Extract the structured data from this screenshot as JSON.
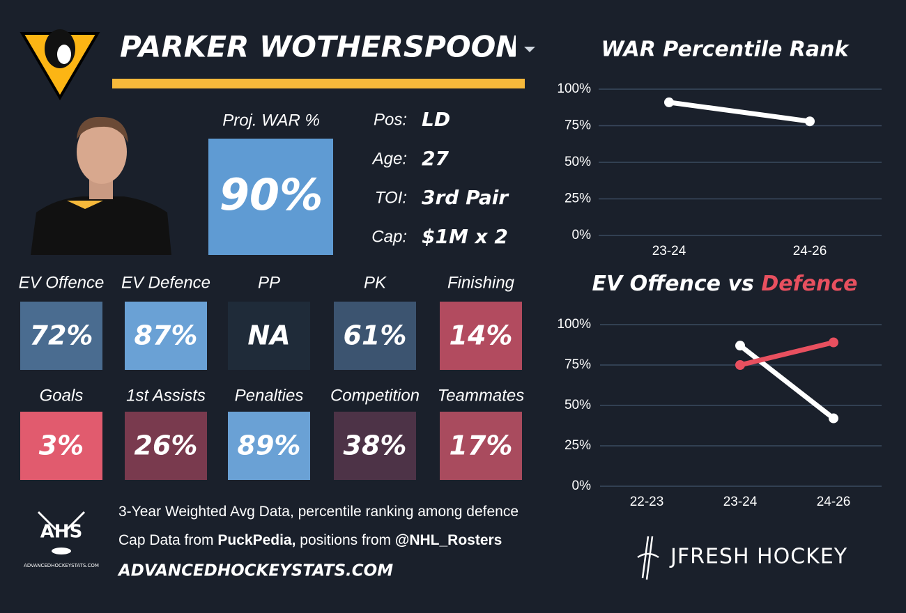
{
  "header": {
    "player_name": "PARKER WOTHERSPOON"
  },
  "projection": {
    "label": "Proj. WAR %",
    "value": "90%",
    "color": "#5f9bd3"
  },
  "info": [
    {
      "label": "Pos:",
      "value": "LD"
    },
    {
      "label": "Age:",
      "value": "27"
    },
    {
      "label": "TOI:",
      "value": "3rd Pair"
    },
    {
      "label": "Cap:",
      "value": "$1M x 2"
    }
  ],
  "tiles": [
    {
      "label": "EV Offence",
      "value": "72%",
      "color": "#4a6c90"
    },
    {
      "label": "EV Defence",
      "value": "87%",
      "color": "#6aa1d5"
    },
    {
      "label": "PP",
      "value": "NA",
      "color": "#1f2b39"
    },
    {
      "label": "PK",
      "value": "61%",
      "color": "#3c5470"
    },
    {
      "label": "Finishing",
      "value": "14%",
      "color": "#b24b5f"
    },
    {
      "label": "Goals",
      "value": "3%",
      "color": "#e15b6e"
    },
    {
      "label": "1st Assists",
      "value": "26%",
      "color": "#793a4e"
    },
    {
      "label": "Penalties",
      "value": "89%",
      "color": "#6aa1d5"
    },
    {
      "label": "Competition",
      "value": "38%",
      "color": "#4d3347"
    },
    {
      "label": "Teammates",
      "value": "17%",
      "color": "#a94b5e"
    }
  ],
  "footer": {
    "logo_text": "AHS",
    "logo_caption": "ADVANCEDHOCKEYSTATS.COM",
    "lines": [
      [
        {
          "text": "3-Year Weighted Avg Data, percentile ranking among defence"
        }
      ],
      [
        {
          "text": "Cap Data from "
        },
        {
          "text": "PuckPedia,",
          "bold": true
        },
        {
          "text": " positions from "
        },
        {
          "text": "@NHL_Rosters",
          "bold": true
        }
      ]
    ],
    "site": "ADVANCEDHOCKEYSTATS.COM",
    "brand": "JFRESH HOCKEY"
  },
  "chart_data": [
    {
      "type": "line",
      "title": "WAR Percentile Rank",
      "categories": [
        "23-24",
        "24-26"
      ],
      "series": [
        {
          "color": "#ffffff",
          "values": [
            91,
            78
          ]
        }
      ],
      "ylim": [
        0,
        100
      ],
      "yticks": [
        {
          "value": 0,
          "label": "0%"
        },
        {
          "value": 25,
          "label": "25%"
        },
        {
          "value": 50,
          "label": "50%"
        },
        {
          "value": 75,
          "label": "75%"
        },
        {
          "value": 100,
          "label": "100%"
        }
      ],
      "grid": true
    },
    {
      "type": "line",
      "title_parts": [
        {
          "text": "EV Offence vs "
        },
        {
          "text": "Defence",
          "color": "#e8505f"
        }
      ],
      "categories": [
        "22-23",
        "23-24",
        "24-26"
      ],
      "series": [
        {
          "color": "#ffffff",
          "values": [
            null,
            87,
            42
          ]
        },
        {
          "color": "#e8505f",
          "values": [
            null,
            75,
            89
          ]
        }
      ],
      "ylim": [
        0,
        100
      ],
      "yticks": [
        {
          "value": 0,
          "label": "0%"
        },
        {
          "value": 25,
          "label": "25%"
        },
        {
          "value": 50,
          "label": "50%"
        },
        {
          "value": 75,
          "label": "75%"
        },
        {
          "value": 100,
          "label": "100%"
        }
      ],
      "grid": true
    }
  ]
}
